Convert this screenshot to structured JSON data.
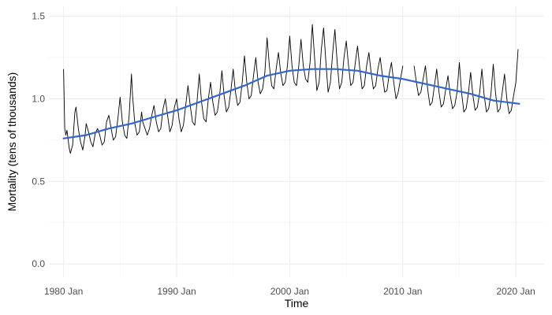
{
  "chart_data": {
    "type": "line",
    "title": "",
    "xlabel": "Time",
    "ylabel": "Mortality (tens of thousands)",
    "xlim": [
      1978.7,
      2022.5
    ],
    "ylim": [
      -0.08,
      1.56
    ],
    "x_ticks": [
      1980,
      1990,
      2000,
      2010,
      2020
    ],
    "x_tick_labels": [
      "1980 Jan",
      "1990 Jan",
      "2000 Jan",
      "2010 Jan",
      "2020 Jan"
    ],
    "y_ticks": [
      0.0,
      0.5,
      1.0,
      1.5
    ],
    "y_tick_labels": [
      "0.0",
      "0.5",
      "1.0",
      "1.5"
    ],
    "grid": true,
    "colors": {
      "series": "#000000",
      "trend": "#3366cc"
    },
    "series": [
      {
        "style": "thin-black-line",
        "missing_intervals": [
          [
            2010.1,
            2011.0
          ]
        ],
        "points": [
          [
            1980.0,
            1.18
          ],
          [
            1980.1,
            0.82
          ],
          [
            1980.2,
            0.78
          ],
          [
            1980.3,
            0.81
          ],
          [
            1980.5,
            0.7
          ],
          [
            1980.6,
            0.67
          ],
          [
            1980.8,
            0.72
          ],
          [
            1981.0,
            0.92
          ],
          [
            1981.1,
            0.95
          ],
          [
            1981.3,
            0.82
          ],
          [
            1981.5,
            0.74
          ],
          [
            1981.7,
            0.69
          ],
          [
            1981.9,
            0.78
          ],
          [
            1982.0,
            0.85
          ],
          [
            1982.2,
            0.8
          ],
          [
            1982.4,
            0.74
          ],
          [
            1982.6,
            0.71
          ],
          [
            1982.8,
            0.79
          ],
          [
            1983.0,
            0.82
          ],
          [
            1983.2,
            0.78
          ],
          [
            1983.4,
            0.72
          ],
          [
            1983.6,
            0.74
          ],
          [
            1983.8,
            0.86
          ],
          [
            1984.0,
            0.9
          ],
          [
            1984.2,
            0.82
          ],
          [
            1984.4,
            0.75
          ],
          [
            1984.6,
            0.77
          ],
          [
            1984.8,
            0.88
          ],
          [
            1985.0,
            1.01
          ],
          [
            1985.2,
            0.86
          ],
          [
            1985.4,
            0.78
          ],
          [
            1985.6,
            0.76
          ],
          [
            1985.8,
            0.9
          ],
          [
            1986.0,
            1.15
          ],
          [
            1986.1,
            1.02
          ],
          [
            1986.3,
            0.85
          ],
          [
            1986.5,
            0.78
          ],
          [
            1986.7,
            0.8
          ],
          [
            1986.9,
            0.92
          ],
          [
            1987.0,
            0.86
          ],
          [
            1987.2,
            0.82
          ],
          [
            1987.4,
            0.78
          ],
          [
            1987.6,
            0.82
          ],
          [
            1987.8,
            0.9
          ],
          [
            1988.0,
            0.96
          ],
          [
            1988.2,
            0.86
          ],
          [
            1988.4,
            0.8
          ],
          [
            1988.6,
            0.82
          ],
          [
            1988.8,
            0.94
          ],
          [
            1989.0,
            1.0
          ],
          [
            1989.2,
            0.9
          ],
          [
            1989.4,
            0.8
          ],
          [
            1989.6,
            0.84
          ],
          [
            1989.8,
            0.95
          ],
          [
            1990.0,
            1.0
          ],
          [
            1990.2,
            0.88
          ],
          [
            1990.4,
            0.8
          ],
          [
            1990.6,
            0.84
          ],
          [
            1990.8,
            0.96
          ],
          [
            1991.0,
            1.08
          ],
          [
            1991.2,
            0.96
          ],
          [
            1991.4,
            0.86
          ],
          [
            1991.6,
            0.84
          ],
          [
            1991.8,
            0.98
          ],
          [
            1992.0,
            1.15
          ],
          [
            1992.2,
            0.98
          ],
          [
            1992.4,
            0.88
          ],
          [
            1992.6,
            0.86
          ],
          [
            1992.8,
            1.0
          ],
          [
            1993.0,
            1.1
          ],
          [
            1993.2,
            0.98
          ],
          [
            1993.4,
            0.9
          ],
          [
            1993.6,
            0.92
          ],
          [
            1993.8,
            1.02
          ],
          [
            1994.0,
            1.17
          ],
          [
            1994.2,
            1.02
          ],
          [
            1994.4,
            0.92
          ],
          [
            1994.6,
            0.95
          ],
          [
            1994.8,
            1.05
          ],
          [
            1995.0,
            1.18
          ],
          [
            1995.2,
            1.04
          ],
          [
            1995.4,
            0.96
          ],
          [
            1995.6,
            0.98
          ],
          [
            1995.8,
            1.1
          ],
          [
            1996.0,
            1.26
          ],
          [
            1996.2,
            1.1
          ],
          [
            1996.4,
            1.0
          ],
          [
            1996.6,
            1.02
          ],
          [
            1996.8,
            1.14
          ],
          [
            1997.0,
            1.25
          ],
          [
            1997.2,
            1.1
          ],
          [
            1997.4,
            1.03
          ],
          [
            1997.6,
            1.06
          ],
          [
            1997.8,
            1.16
          ],
          [
            1998.0,
            1.37
          ],
          [
            1998.2,
            1.2
          ],
          [
            1998.4,
            1.08
          ],
          [
            1998.6,
            1.06
          ],
          [
            1998.8,
            1.18
          ],
          [
            1999.0,
            1.28
          ],
          [
            1999.2,
            1.16
          ],
          [
            1999.4,
            1.08
          ],
          [
            1999.6,
            1.1
          ],
          [
            1999.8,
            1.2
          ],
          [
            2000.0,
            1.38
          ],
          [
            2000.2,
            1.2
          ],
          [
            2000.4,
            1.1
          ],
          [
            2000.6,
            1.08
          ],
          [
            2000.8,
            1.2
          ],
          [
            2001.0,
            1.36
          ],
          [
            2001.2,
            1.2
          ],
          [
            2001.4,
            1.12
          ],
          [
            2001.6,
            1.1
          ],
          [
            2001.8,
            1.22
          ],
          [
            2002.0,
            1.45
          ],
          [
            2002.2,
            1.25
          ],
          [
            2002.4,
            1.05
          ],
          [
            2002.6,
            1.1
          ],
          [
            2002.8,
            1.3
          ],
          [
            2003.0,
            1.43
          ],
          [
            2003.2,
            1.22
          ],
          [
            2003.4,
            1.04
          ],
          [
            2003.6,
            1.1
          ],
          [
            2003.8,
            1.28
          ],
          [
            2004.0,
            1.42
          ],
          [
            2004.2,
            1.22
          ],
          [
            2004.4,
            1.06
          ],
          [
            2004.6,
            1.1
          ],
          [
            2004.8,
            1.25
          ],
          [
            2005.0,
            1.35
          ],
          [
            2005.2,
            1.2
          ],
          [
            2005.4,
            1.08
          ],
          [
            2005.6,
            1.1
          ],
          [
            2005.8,
            1.22
          ],
          [
            2006.0,
            1.32
          ],
          [
            2006.2,
            1.18
          ],
          [
            2006.4,
            1.06
          ],
          [
            2006.6,
            1.08
          ],
          [
            2006.8,
            1.2
          ],
          [
            2007.0,
            1.28
          ],
          [
            2007.2,
            1.16
          ],
          [
            2007.4,
            1.06
          ],
          [
            2007.6,
            1.08
          ],
          [
            2007.8,
            1.18
          ],
          [
            2008.0,
            1.25
          ],
          [
            2008.2,
            1.14
          ],
          [
            2008.4,
            1.04
          ],
          [
            2008.6,
            1.05
          ],
          [
            2008.8,
            1.15
          ],
          [
            2009.0,
            1.22
          ],
          [
            2009.2,
            1.1
          ],
          [
            2009.4,
            1.0
          ],
          [
            2009.6,
            1.04
          ],
          [
            2009.8,
            1.12
          ],
          [
            2010.0,
            1.2
          ],
          [
            2011.0,
            1.2
          ],
          [
            2011.2,
            1.1
          ],
          [
            2011.4,
            1.02
          ],
          [
            2011.6,
            1.04
          ],
          [
            2011.8,
            1.12
          ],
          [
            2012.0,
            1.2
          ],
          [
            2012.2,
            1.06
          ],
          [
            2012.4,
            0.96
          ],
          [
            2012.6,
            0.98
          ],
          [
            2012.8,
            1.08
          ],
          [
            2013.0,
            1.18
          ],
          [
            2013.2,
            1.04
          ],
          [
            2013.4,
            0.95
          ],
          [
            2013.6,
            0.97
          ],
          [
            2013.8,
            1.06
          ],
          [
            2014.0,
            1.14
          ],
          [
            2014.2,
            1.02
          ],
          [
            2014.4,
            0.94
          ],
          [
            2014.6,
            0.96
          ],
          [
            2014.8,
            1.04
          ],
          [
            2015.0,
            1.22
          ],
          [
            2015.2,
            1.04
          ],
          [
            2015.4,
            0.92
          ],
          [
            2015.6,
            0.94
          ],
          [
            2015.8,
            1.03
          ],
          [
            2016.0,
            1.16
          ],
          [
            2016.2,
            1.02
          ],
          [
            2016.4,
            0.93
          ],
          [
            2016.6,
            0.95
          ],
          [
            2016.8,
            1.04
          ],
          [
            2017.0,
            1.18
          ],
          [
            2017.2,
            1.02
          ],
          [
            2017.4,
            0.92
          ],
          [
            2017.6,
            0.94
          ],
          [
            2017.8,
            1.03
          ],
          [
            2018.0,
            1.21
          ],
          [
            2018.2,
            1.04
          ],
          [
            2018.4,
            0.92
          ],
          [
            2018.6,
            0.94
          ],
          [
            2018.8,
            1.04
          ],
          [
            2019.0,
            1.15
          ],
          [
            2019.2,
            1.0
          ],
          [
            2019.4,
            0.91
          ],
          [
            2019.6,
            0.93
          ],
          [
            2019.8,
            1.02
          ],
          [
            2020.0,
            1.1
          ],
          [
            2020.2,
            1.3
          ]
        ]
      },
      {
        "style": "smooth-trend",
        "points": [
          [
            1980.0,
            0.76
          ],
          [
            1982.0,
            0.78
          ],
          [
            1984.0,
            0.82
          ],
          [
            1986.0,
            0.85
          ],
          [
            1988.0,
            0.89
          ],
          [
            1990.0,
            0.93
          ],
          [
            1992.0,
            0.98
          ],
          [
            1994.0,
            1.03
          ],
          [
            1996.0,
            1.08
          ],
          [
            1998.0,
            1.14
          ],
          [
            2000.0,
            1.17
          ],
          [
            2002.0,
            1.18
          ],
          [
            2004.0,
            1.18
          ],
          [
            2006.0,
            1.17
          ],
          [
            2008.0,
            1.14
          ],
          [
            2010.0,
            1.12
          ],
          [
            2012.0,
            1.09
          ],
          [
            2014.0,
            1.06
          ],
          [
            2016.0,
            1.03
          ],
          [
            2018.0,
            0.99
          ],
          [
            2020.3,
            0.97
          ]
        ]
      }
    ]
  }
}
